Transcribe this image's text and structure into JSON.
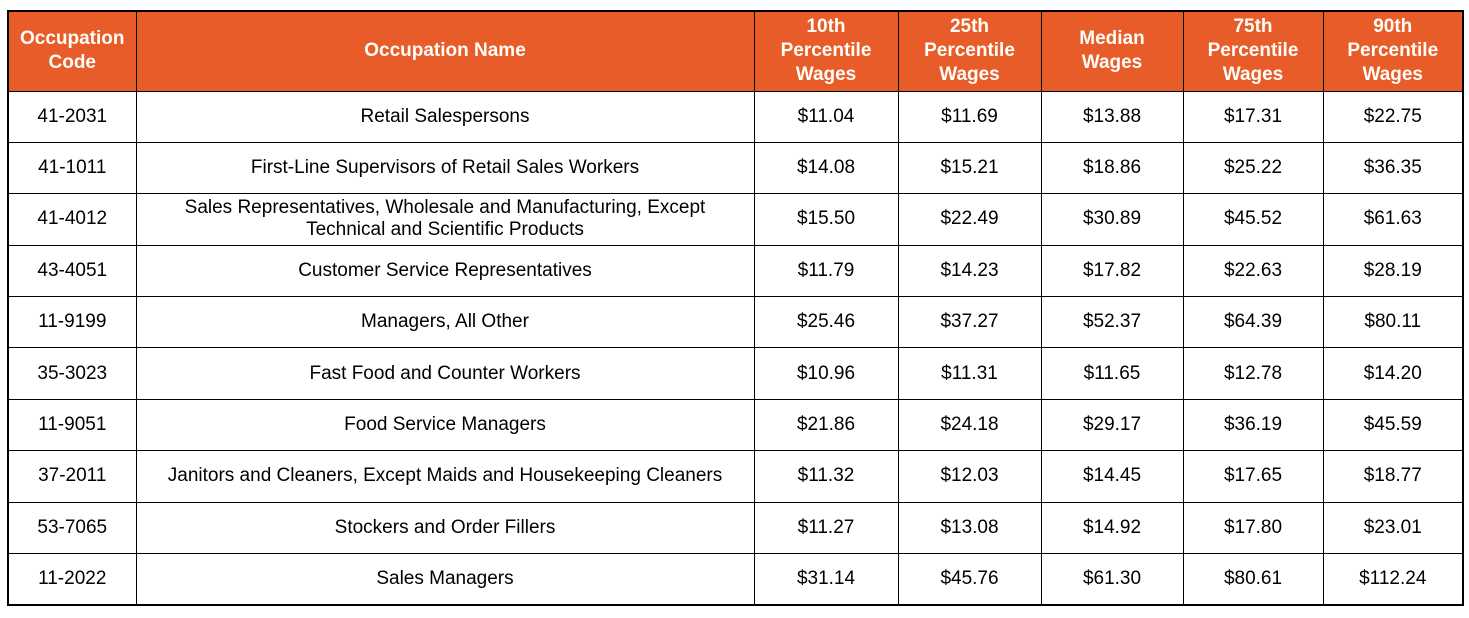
{
  "theme": {
    "header_bg": "#E85C29",
    "header_text": "#FFFEF8",
    "border": "#000000",
    "body_text": "#000000",
    "row_bg": "#FFFFFF"
  },
  "table": {
    "headers": [
      {
        "id": "code",
        "label": "Occupation\nCode"
      },
      {
        "id": "name",
        "label": "Occupation Name"
      },
      {
        "id": "p10",
        "label": "10th\nPercentile\nWages"
      },
      {
        "id": "p25",
        "label": "25th\nPercentile\nWages"
      },
      {
        "id": "median",
        "label": "Median\nWages"
      },
      {
        "id": "p75",
        "label": "75th\nPercentile\nWages"
      },
      {
        "id": "p90",
        "label": "90th\nPercentile\nWages"
      }
    ],
    "rows": [
      {
        "code": "41-2031",
        "name": "Retail Salespersons",
        "p10": "$11.04",
        "p25": "$11.69",
        "median": "$13.88",
        "p75": "$17.31",
        "p90": "$22.75"
      },
      {
        "code": "41-1011",
        "name": "First-Line Supervisors of Retail Sales Workers",
        "p10": "$14.08",
        "p25": "$15.21",
        "median": "$18.86",
        "p75": "$25.22",
        "p90": "$36.35"
      },
      {
        "code": "41-4012",
        "name": "Sales Representatives, Wholesale and Manufacturing, Except Technical and Scientific Products",
        "p10": "$15.50",
        "p25": "$22.49",
        "median": "$30.89",
        "p75": "$45.52",
        "p90": "$61.63"
      },
      {
        "code": "43-4051",
        "name": "Customer Service Representatives",
        "p10": "$11.79",
        "p25": "$14.23",
        "median": "$17.82",
        "p75": "$22.63",
        "p90": "$28.19"
      },
      {
        "code": "11-9199",
        "name": "Managers, All Other",
        "p10": "$25.46",
        "p25": "$37.27",
        "median": "$52.37",
        "p75": "$64.39",
        "p90": "$80.11"
      },
      {
        "code": "35-3023",
        "name": "Fast Food and Counter Workers",
        "p10": "$10.96",
        "p25": "$11.31",
        "median": "$11.65",
        "p75": "$12.78",
        "p90": "$14.20"
      },
      {
        "code": "11-9051",
        "name": "Food Service Managers",
        "p10": "$21.86",
        "p25": "$24.18",
        "median": "$29.17",
        "p75": "$36.19",
        "p90": "$45.59"
      },
      {
        "code": "37-2011",
        "name": "Janitors and Cleaners, Except Maids and Housekeeping Cleaners",
        "p10": "$11.32",
        "p25": "$12.03",
        "median": "$14.45",
        "p75": "$17.65",
        "p90": "$18.77"
      },
      {
        "code": "53-7065",
        "name": "Stockers and Order Fillers",
        "p10": "$11.27",
        "p25": "$13.08",
        "median": "$14.92",
        "p75": "$17.80",
        "p90": "$23.01"
      },
      {
        "code": "11-2022",
        "name": "Sales Managers",
        "p10": "$31.14",
        "p25": "$45.76",
        "median": "$61.30",
        "p75": "$80.61",
        "p90": "$112.24"
      }
    ]
  }
}
